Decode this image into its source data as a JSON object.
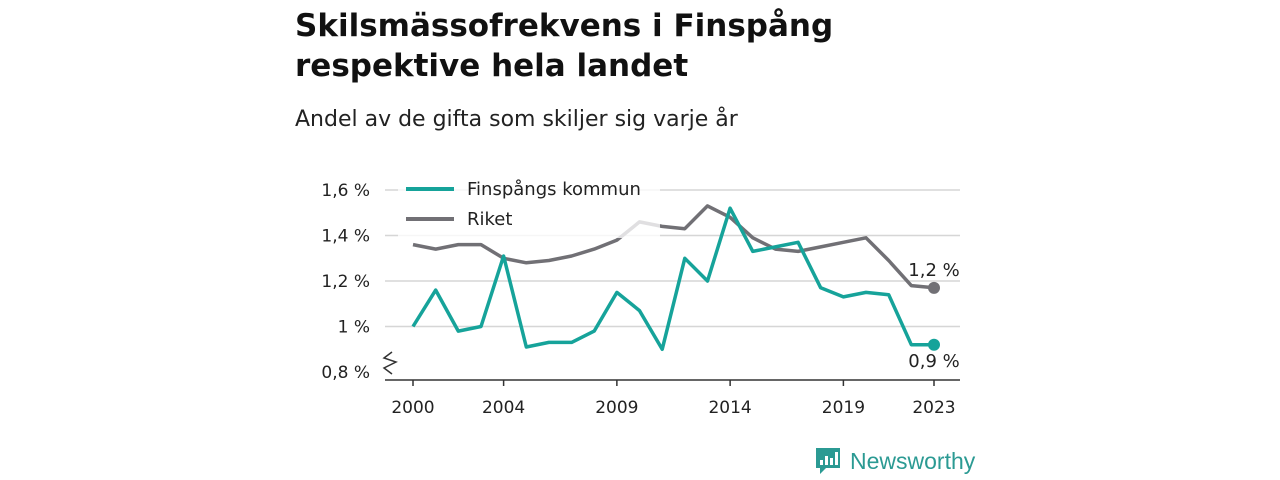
{
  "title": "Skilsmässofrekvens i Finspång respektive hela landet",
  "subtitle": "Andel av de gifta som skiljer sig varje år",
  "brand": "Newsworthy",
  "chart_data": {
    "type": "line",
    "x": [
      2000,
      2001,
      2002,
      2003,
      2004,
      2005,
      2006,
      2007,
      2008,
      2009,
      2010,
      2011,
      2012,
      2013,
      2014,
      2015,
      2016,
      2017,
      2018,
      2019,
      2020,
      2021,
      2022,
      2023
    ],
    "x_tick_labels": [
      "2000",
      "2004",
      "2009",
      "2014",
      "2019",
      "2023"
    ],
    "y_tick_labels": [
      "0,8 %",
      "1 %",
      "1,2 %",
      "1,4 %",
      "1,6 %"
    ],
    "y_ticks": [
      0.8,
      1.0,
      1.2,
      1.4,
      1.6
    ],
    "ylim": [
      0.8,
      1.6
    ],
    "legend_placement": "top-left",
    "grid": true,
    "series": [
      {
        "name": "Finspångs kommun",
        "color": "#16a39a",
        "values": [
          1.0,
          1.16,
          0.98,
          1.0,
          1.31,
          0.91,
          0.93,
          0.93,
          0.98,
          1.15,
          1.07,
          0.9,
          1.3,
          1.2,
          1.52,
          1.33,
          1.35,
          1.37,
          1.17,
          1.13,
          1.15,
          1.14,
          0.92,
          0.92
        ],
        "end_label": "0,9 %"
      },
      {
        "name": "Riket",
        "color": "#717075",
        "values": [
          1.36,
          1.34,
          1.36,
          1.36,
          1.3,
          1.28,
          1.29,
          1.31,
          1.34,
          1.38,
          1.46,
          1.44,
          1.43,
          1.53,
          1.48,
          1.39,
          1.34,
          1.33,
          1.35,
          1.37,
          1.39,
          1.29,
          1.18,
          1.17
        ],
        "end_label": "1,2 %"
      }
    ]
  }
}
